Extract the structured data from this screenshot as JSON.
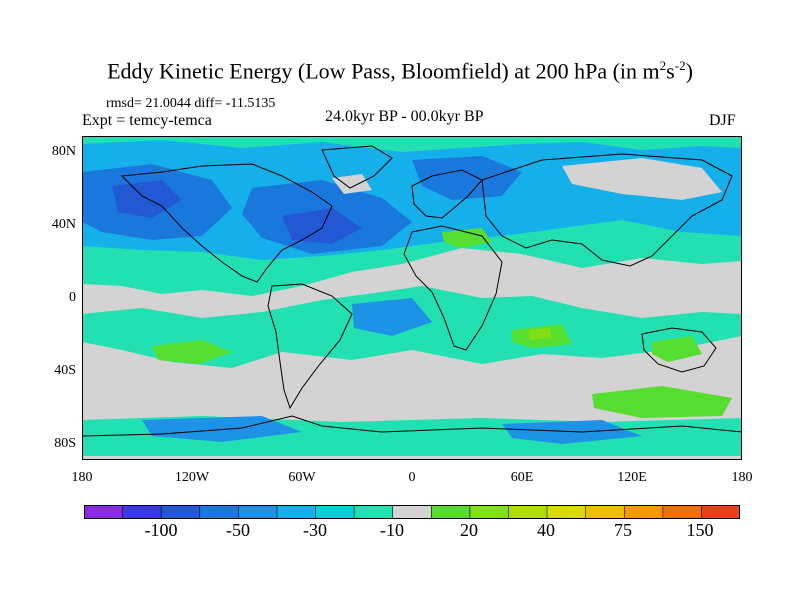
{
  "title": {
    "text": "Eddy Kinetic Energy (Low Pass, Bloomfield) at 200 hPa (in m",
    "sup1": "2",
    "mid": "s",
    "sup2": "-2",
    "end": ")"
  },
  "stats": "rmsd= 21.0044 diff= -11.5135",
  "expt": "Expt = temcy-temca",
  "period": "24.0kyr BP - 00.0kyr BP",
  "season": "DJF",
  "lat_labels": [
    "80N",
    "40N",
    "0",
    "40S",
    "80S"
  ],
  "lon_labels": [
    "180",
    "120W",
    "60W",
    "0",
    "60E",
    "120E",
    "180"
  ],
  "colors": {
    "neutral": "#d3d3d3",
    "neg": [
      "#8a2be2",
      "#3a38e0",
      "#2358d4",
      "#1a78dc",
      "#1e93e6",
      "#15b0ea",
      "#08cfd6",
      "#22e0b2"
    ],
    "pos": [
      "#55dd30",
      "#80e014",
      "#b0e000",
      "#d8dc00",
      "#f0c000",
      "#f49a00",
      "#ee7000",
      "#e8401a"
    ]
  },
  "colorbar_labels": [
    "-100",
    "-50",
    "-30",
    "-10",
    "20",
    "40",
    "75",
    "150"
  ]
}
